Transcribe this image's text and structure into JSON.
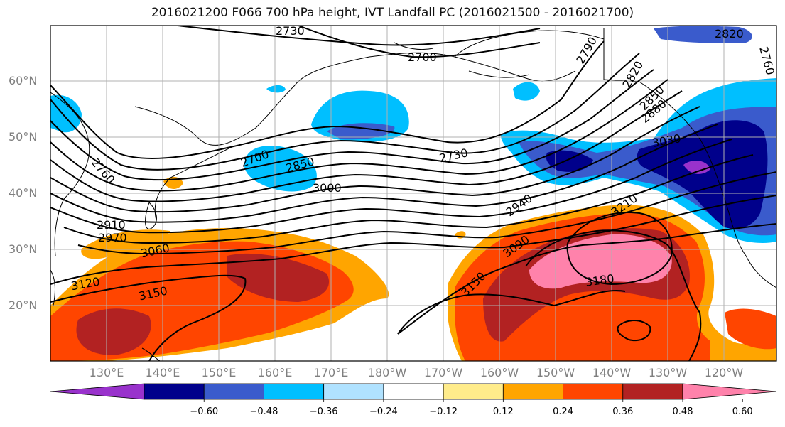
{
  "title": "2016021200 F066 700 hPa height, IVT Landfall PC (2016021500 - 2016021700)",
  "lat_labels": [
    "60°N",
    "50°N",
    "40°N",
    "30°N",
    "20°N"
  ],
  "lon_labels": [
    "130°E",
    "140°E",
    "150°E",
    "160°E",
    "170°E",
    "180°W",
    "170°W",
    "160°W",
    "150°W",
    "140°W",
    "130°W",
    "120°W"
  ],
  "contour_labels": [
    "2730",
    "2700",
    "2790",
    "2820",
    "2850",
    "2880",
    "3030",
    "2730",
    "2700",
    "2850",
    "3000",
    "2940",
    "3090",
    "3210",
    "2760",
    "2910",
    "2970",
    "3060",
    "3120",
    "3150",
    "3150",
    "3180",
    "2820",
    "2760"
  ],
  "colorbar": {
    "ticks": [
      "−0.60",
      "−0.48",
      "−0.36",
      "−0.24",
      "−0.12",
      "0.12",
      "0.24",
      "0.36",
      "0.48",
      "0.60"
    ],
    "colors": [
      "#9932cc",
      "#00008b",
      "#3a5bcc",
      "#00bfff",
      "#b0e2ff",
      "#ffffff",
      "#ffec8b",
      "#ffa500",
      "#ff4500",
      "#b22222",
      "#ff82ab"
    ]
  },
  "map_extent": {
    "lon_min": "120°E",
    "lon_max": "110°W",
    "lat_min": "10°N",
    "lat_max": "70°N"
  }
}
